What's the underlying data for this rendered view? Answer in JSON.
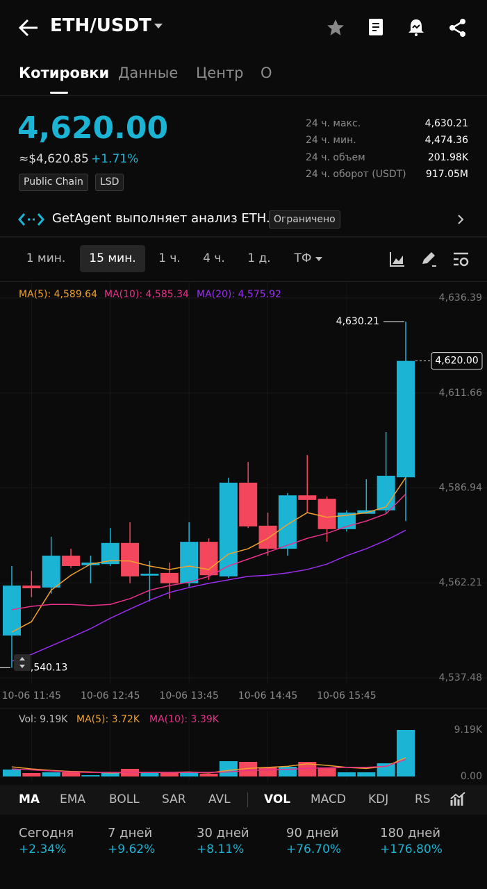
{
  "header": {
    "pair": "ETH/USDT"
  },
  "tabs": [
    "Котировки",
    "Данные",
    "Центр",
    "О"
  ],
  "price": {
    "last": "4,620.00",
    "usd": "≈$4,620.85",
    "change": "+1.71%",
    "tags": [
      "Public Chain",
      "LSD"
    ]
  },
  "stats": [
    {
      "label": "24 ч. макс.",
      "value": "4,630.21"
    },
    {
      "label": "24 ч. мин.",
      "value": "4,474.36"
    },
    {
      "label": "24 ч. объем",
      "value": "201.98K"
    },
    {
      "label": "24 ч. оборот (USDT)",
      "value": "917.05M"
    }
  ],
  "agent": {
    "text": "GetAgent выполняет анализ ETH.",
    "badge": "Ограничено"
  },
  "timeframes": [
    "1 мин.",
    "15 мин.",
    "1 ч.",
    "4 ч.",
    "1 д.",
    "ТФ"
  ],
  "chart_data": [
    {
      "type": "candlestick",
      "categories": [
        null,
        "10-06 11:45",
        null,
        null,
        null,
        "10-06 12:45",
        null,
        null,
        null,
        "10-06 13:45",
        null,
        null,
        null,
        "10-06 14:45",
        null,
        null,
        null,
        "10-06 15:45",
        null,
        null,
        null
      ],
      "open": [
        4548.5,
        4561.5,
        4561.0,
        4569.3,
        4566.8,
        4567.1,
        4572.6,
        4564.1,
        4564.8,
        4562.1,
        4572.9,
        4563.9,
        4588.3,
        4577.1,
        4571.1,
        4585.0,
        4584.1,
        4576.2,
        4580.2,
        4581.1,
        4589.7
      ],
      "high": [
        4566.6,
        4565.3,
        4574.2,
        4571.1,
        4569.3,
        4576.5,
        4578.0,
        4567.9,
        4567.5,
        4578.0,
        4573.8,
        4589.6,
        4593.7,
        4580.5,
        4585.6,
        4595.5,
        4584.7,
        4581.1,
        4589.2,
        4601.5,
        4630.21
      ],
      "low": [
        4540.13,
        4558.5,
        4559.4,
        4566.1,
        4562.1,
        4566.6,
        4562.1,
        4557.4,
        4558.1,
        4561.2,
        4563.0,
        4563.5,
        4576.5,
        4569.3,
        4569.3,
        4580.5,
        4572.9,
        4575.6,
        4580.2,
        4580.5,
        4578.3
      ],
      "close": [
        4561.5,
        4560.8,
        4569.3,
        4566.6,
        4567.5,
        4572.6,
        4563.9,
        4564.6,
        4562.1,
        4572.9,
        4564.2,
        4588.3,
        4576.9,
        4571.1,
        4585.0,
        4583.8,
        4576.2,
        4580.5,
        4581.1,
        4590.1,
        4620.0
      ],
      "up_color": "#1cb4d4",
      "down_color": "#f4475d",
      "series": [
        {
          "name": "MA(5): 4,589.64",
          "color": "#f0a02c",
          "values": [
            4549.4,
            4552.1,
            4560.3,
            4564.2,
            4567.1,
            4568.0,
            4567.9,
            4566.6,
            4565.7,
            4566.6,
            4565.7,
            4569.7,
            4571.1,
            4573.8,
            4577.4,
            4580.5,
            4579.3,
            4579.8,
            4580.5,
            4582.0,
            4589.64
          ]
        },
        {
          "name": "MA(10): 4,585.34",
          "color": "#e8318a",
          "values": [
            4555.2,
            4556.1,
            4556.6,
            4556.6,
            4556.3,
            4556.6,
            4558.1,
            4560.3,
            4561.5,
            4562.4,
            4563.9,
            4566.6,
            4568.4,
            4570.2,
            4572.0,
            4573.8,
            4575.1,
            4576.9,
            4578.3,
            4580.2,
            4585.34
          ]
        },
        {
          "name": "MA(20): 4,575.92",
          "color": "#9a2ef0",
          "values": [
            4541.8,
            4543.6,
            4545.8,
            4548.0,
            4550.3,
            4553.0,
            4555.4,
            4557.7,
            4559.7,
            4561.0,
            4562.1,
            4563.0,
            4563.9,
            4564.2,
            4564.8,
            4565.7,
            4567.1,
            4569.3,
            4571.1,
            4573.3,
            4575.92
          ]
        }
      ],
      "ylim": [
        4537.48,
        4636.39
      ],
      "yticks": [
        {
          "value": 4636.39,
          "label": "4,636.39"
        },
        {
          "value": 4611.66,
          "label": "4,611.66"
        },
        {
          "value": 4586.94,
          "label": "4,586.94"
        },
        {
          "value": 4562.21,
          "label": "4,562.21"
        },
        {
          "value": 4537.48,
          "label": "4,537.48"
        }
      ],
      "annotations": [
        {
          "value": 4630.21,
          "label": "4,630.21"
        },
        {
          "value": 4540.13,
          "label": "4,540.13"
        }
      ],
      "last_price": {
        "value": 4620.0,
        "label": "4,620.00"
      },
      "grid": true
    },
    {
      "type": "bar",
      "series": [
        {
          "name": "Vol: 9.19K",
          "values": [
            1.37,
            0.69,
            0.82,
            0.82,
            0.27,
            0.82,
            1.51,
            0.69,
            0.82,
            0.82,
            0.55,
            3.02,
            2.88,
            1.78,
            1.92,
            2.88,
            1.78,
            0.82,
            0.82,
            2.61,
            9.19
          ]
        },
        {
          "name": "MA(5): 3.72K",
          "color": "#f0a02c",
          "values": [
            1.9,
            1.5,
            1.2,
            1.0,
            0.9,
            0.7,
            0.8,
            0.8,
            0.8,
            0.9,
            0.7,
            1.2,
            1.6,
            1.8,
            2.0,
            2.5,
            2.2,
            1.8,
            1.6,
            2.0,
            3.72
          ]
        },
        {
          "name": "MA(10): 3.39K",
          "color": "#e8318a",
          "values": [
            1.5,
            1.3,
            1.1,
            0.9,
            0.8,
            0.8,
            0.8,
            0.8,
            0.8,
            0.8,
            0.8,
            0.9,
            1.2,
            1.3,
            1.4,
            1.6,
            1.7,
            1.8,
            1.8,
            2.0,
            3.39
          ]
        }
      ],
      "ylim": [
        0,
        9.19
      ],
      "yticks": [
        {
          "value": 9.19,
          "label": "9.19K"
        },
        {
          "value": 0,
          "label": "0.00"
        }
      ]
    }
  ],
  "indicators": [
    "MA",
    "EMA",
    "BOLL",
    "SAR",
    "AVL",
    "VOL",
    "MACD",
    "KDJ",
    "RS"
  ],
  "performance": [
    {
      "period": "Сегодня",
      "change": "+2.34%"
    },
    {
      "period": "7 дней",
      "change": "+9.62%"
    },
    {
      "period": "30 дней",
      "change": "+8.11%"
    },
    {
      "period": "90 дней",
      "change": "+76.70%"
    },
    {
      "period": "180 дней",
      "change": "+176.80%"
    }
  ]
}
